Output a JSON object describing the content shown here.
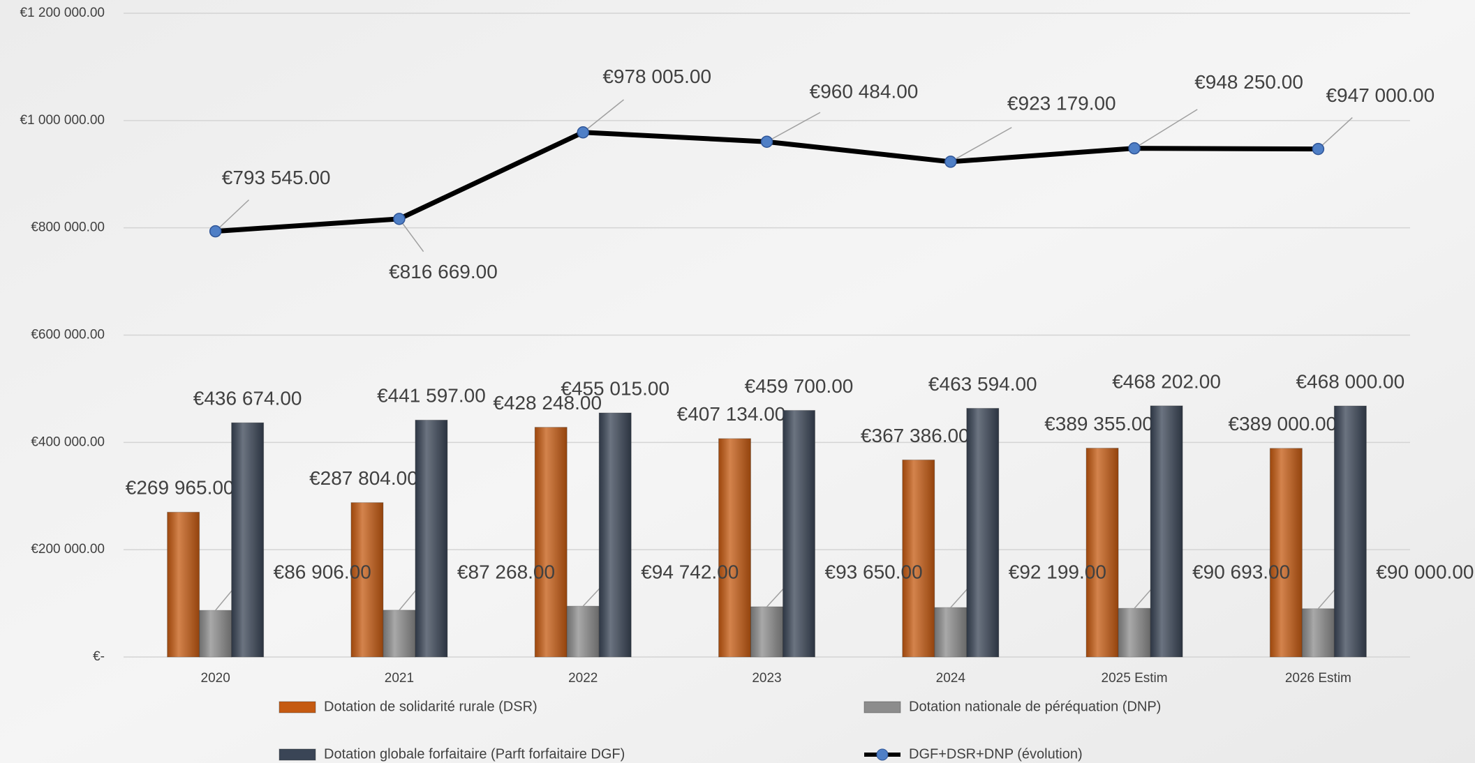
{
  "chart_data": {
    "type": "bar-line",
    "categories": [
      "2020",
      "2021",
      "2022",
      "2023",
      "2024",
      "2025 Estim",
      "2026 Estim"
    ],
    "series": [
      {
        "name": "Dotation de solidarité rurale (DSR)",
        "type": "bar",
        "color": "#c55a11",
        "values": [
          269965,
          287804,
          428248,
          407134,
          367386,
          389355,
          389000
        ],
        "value_labels": [
          "€269 965.00",
          "€287 804.00",
          "€428 248.00",
          "€407 134.00",
          "€367 386.00",
          "€389 355.00",
          "€389 000.00"
        ]
      },
      {
        "name": "Dotation nationale de péréquation (DNP)",
        "type": "bar",
        "color": "#8c8c8c",
        "values": [
          86906,
          87268,
          94742,
          93650,
          92199,
          90693,
          90000
        ],
        "value_labels": [
          "€86 906.00",
          "€87 268.00",
          "€94 742.00",
          "€93 650.00",
          "€92 199.00",
          "€90 693.00",
          "€90 000.00"
        ]
      },
      {
        "name": "Dotation globale forfaitaire (Parft forfaitaire DGF)",
        "type": "bar",
        "color": "#3a4556",
        "values": [
          436674,
          441597,
          455015,
          459700,
          463594,
          468202,
          468000
        ],
        "value_labels": [
          "€436 674.00",
          "€441 597.00",
          "€455 015.00",
          "€459 700.00",
          "€463 594.00",
          "€468 202.00",
          "€468 000.00"
        ]
      },
      {
        "name": "DGF+DSR+DNP (évolution)",
        "type": "line",
        "color": "#000000",
        "marker_color": "#4f7fc6",
        "values": [
          793545,
          816669,
          978005,
          960484,
          923179,
          948250,
          947000
        ],
        "value_labels": [
          "€793 545.00",
          "€816 669.00",
          "€978 005.00",
          "€960 484.00",
          "€923 179.00",
          "€948 250.00",
          "€947 000.00"
        ]
      }
    ],
    "ylim": [
      0,
      1200000
    ],
    "yticks": [
      {
        "value": 0,
        "label": "€-"
      },
      {
        "value": 200000,
        "label": "€200 000.00"
      },
      {
        "value": 400000,
        "label": "€400 000.00"
      },
      {
        "value": 600000,
        "label": "€600 000.00"
      },
      {
        "value": 800000,
        "label": "€800 000.00"
      },
      {
        "value": 1000000,
        "label": "€1 000 000.00"
      },
      {
        "value": 1200000,
        "label": "€1 200 000.00"
      }
    ],
    "grid": true,
    "legend": "bottom"
  }
}
